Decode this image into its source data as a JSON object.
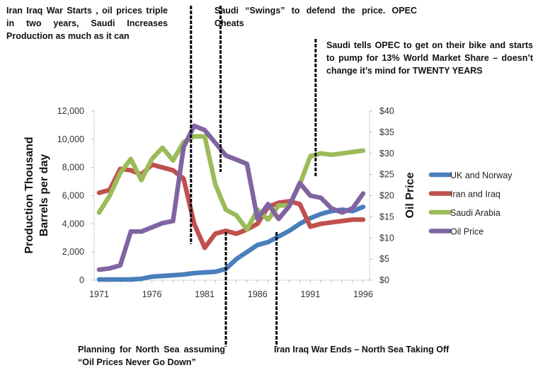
{
  "chart_data": {
    "type": "line",
    "title": "",
    "x": [
      1971,
      1972,
      1973,
      1974,
      1975,
      1976,
      1977,
      1978,
      1979,
      1980,
      1981,
      1982,
      1983,
      1984,
      1985,
      1986,
      1987,
      1988,
      1989,
      1990,
      1991,
      1992,
      1993,
      1994,
      1995,
      1996
    ],
    "x_ticks": [
      "1971",
      "1976",
      "1981",
      "1986",
      "1991",
      "1996"
    ],
    "x_tick_values": [
      1971,
      1976,
      1981,
      1986,
      1991,
      1996
    ],
    "xlim": [
      1970.5,
      1997
    ],
    "ylabel": "Production Thousand Barrels per day",
    "ylabel_lines": [
      "Production Thousand",
      "Barrels per day"
    ],
    "ylim": [
      0,
      12000
    ],
    "y_ticks": [
      "0",
      "2,000",
      "4,000",
      "6,000",
      "8,000",
      "10,000",
      "12,000"
    ],
    "y_tick_values": [
      0,
      2000,
      4000,
      6000,
      8000,
      10000,
      12000
    ],
    "y2label": "Oil Price",
    "y2lim": [
      0,
      40
    ],
    "y2_ticks": [
      "$0",
      "$5",
      "$10",
      "$15",
      "$20",
      "$25",
      "$30",
      "$35",
      "$40"
    ],
    "y2_tick_values": [
      0,
      5,
      10,
      15,
      20,
      25,
      30,
      35,
      40
    ],
    "grid": false,
    "legend_position": "right",
    "series": [
      {
        "name": "UK and Norway",
        "axis": "left",
        "color": "#4a7ebb",
        "values": [
          50,
          50,
          50,
          50,
          100,
          250,
          300,
          350,
          400,
          500,
          550,
          600,
          800,
          1500,
          2000,
          2500,
          2700,
          3100,
          3500,
          4000,
          4400,
          4700,
          4900,
          5000,
          4900,
          5200
        ]
      },
      {
        "name": "Iran and Iraq",
        "axis": "left",
        "color": "#c0504d",
        "values": [
          6200,
          6400,
          7900,
          7800,
          7500,
          8200,
          8000,
          7800,
          7200,
          4000,
          2300,
          3300,
          3500,
          3300,
          3600,
          4000,
          5200,
          5500,
          5600,
          5400,
          3800,
          4000,
          4100,
          4200,
          4300,
          4300
        ]
      },
      {
        "name": "Saudi Arabia",
        "axis": "left",
        "color": "#9bbb59",
        "values": [
          4800,
          6000,
          7600,
          8600,
          7100,
          8600,
          9400,
          8500,
          9800,
          10200,
          10200,
          6800,
          5000,
          4600,
          3600,
          5000,
          4300,
          5300,
          5300,
          6800,
          8800,
          9000,
          8900,
          9000,
          9100,
          9200
        ]
      },
      {
        "name": "Oil Price",
        "axis": "right",
        "color": "#8064a2",
        "values": [
          2.5,
          2.8,
          3.5,
          11.5,
          11.5,
          12.5,
          13.5,
          14.0,
          31.5,
          36.5,
          35.5,
          32.5,
          29.5,
          28.5,
          27.5,
          14.5,
          18.0,
          14.5,
          17.5,
          23.0,
          20.0,
          19.5,
          17.0,
          16.0,
          17.0,
          20.5
        ]
      }
    ],
    "event_markers": [
      {
        "year": 1979.7,
        "label": "Iran Iraq War Starts , oil prices triple in two years, Saudi Increases Production as much as it can"
      },
      {
        "year": 1982.5,
        "label": "Saudi “Swings” to defend the price. OPEC Cheats"
      },
      {
        "year": 1983.0,
        "label": "Planning for North Sea assuming “Oil Prices Never Go Down”"
      },
      {
        "year": 1987.8,
        "label": "Iran Iraq War Ends – North Sea Taking Off"
      },
      {
        "year": 1991.5,
        "label": "Saudi tells OPEC to get on their bike and starts to pump for 13% World Market Share – doesn’t change it’s mind for TWENTY YEARS"
      }
    ]
  },
  "annotations": {
    "war_starts": "Iran Iraq War Starts , oil prices triple in two years, Saudi Increases Production as much as it can",
    "saudi_swings": "Saudi “Swings” to defend the price. OPEC Cheats",
    "saudi_market_share": "Saudi tells OPEC to get on their bike and starts to pump for 13% World Market Share – doesn’t change it’s mind for TWENTY YEARS",
    "north_sea_planning": "Planning for North Sea assuming “Oil Prices Never Go Down”",
    "war_ends": "Iran Iraq War Ends – North Sea Taking Off"
  }
}
